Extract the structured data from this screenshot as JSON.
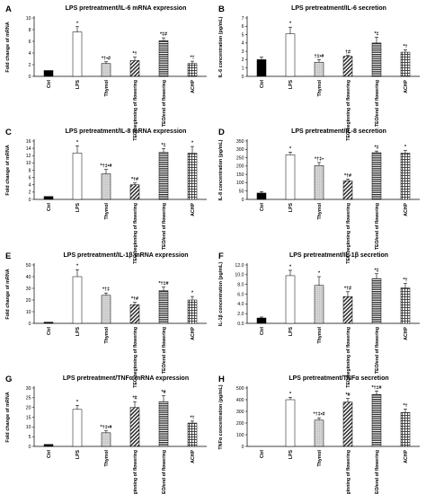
{
  "chart_data": [
    {
      "type": "bar",
      "letter": "A",
      "title": "LPS pretreatment/IL-6 mRNA expression",
      "ylabel": "Fold change of mRNA",
      "ylim": [
        0,
        10
      ],
      "yticks": [
        0,
        2,
        4,
        6,
        8,
        10
      ],
      "categories": [
        "Ctrl",
        "LPS",
        "Thymol",
        "TEO/beginning of flowering",
        "TEO/end of flowering",
        "ACHP"
      ],
      "values": [
        1.0,
        7.6,
        2.2,
        2.7,
        6.1,
        2.2
      ],
      "errors": [
        0.0,
        0.9,
        0.3,
        0.6,
        0.5,
        0.4
      ],
      "annotations": [
        "",
        "*",
        "*†•#",
        "*†",
        "*‡#",
        "*†"
      ]
    },
    {
      "type": "bar",
      "letter": "B",
      "title": "LPS pretreatment/IL-6 secretion",
      "ylabel": "IL-6 concentration (pg/mL)",
      "ylim": [
        0,
        7
      ],
      "yticks": [
        0,
        1,
        2,
        3,
        4,
        5,
        6,
        7
      ],
      "categories": [
        "Ctrl",
        "LPS",
        "Thymol",
        "TEO/beginning of flowering",
        "TEO/end of flowering",
        "ACHP"
      ],
      "values": [
        2.0,
        5.1,
        1.7,
        2.4,
        4.0,
        2.9
      ],
      "errors": [
        0.3,
        0.8,
        0.3,
        0.1,
        0.7,
        0.3
      ],
      "annotations": [
        "",
        "*",
        "†‡•#",
        "†#",
        "*‡",
        "*†"
      ]
    },
    {
      "type": "bar",
      "letter": "C",
      "title": "LPS pretreatment/IL-8 mRNA expression",
      "ylabel": "Fold change of mRNA",
      "ylim": [
        0,
        16
      ],
      "yticks": [
        0,
        2,
        4,
        6,
        8,
        10,
        12,
        14,
        16
      ],
      "categories": [
        "Ctrl",
        "LPS",
        "Thymol",
        "TEO/beginning of flowering",
        "TEO/end of flowering",
        "ACHP"
      ],
      "values": [
        0.8,
        12.7,
        7.0,
        4.0,
        12.9,
        12.7
      ],
      "errors": [
        0.0,
        2.0,
        1.2,
        0.5,
        1.0,
        1.8
      ],
      "annotations": [
        "",
        "*",
        "*†‡•#",
        "*†#",
        "*‡",
        "*"
      ]
    },
    {
      "type": "bar",
      "letter": "D",
      "title": "LPS pretreatment/IL-8 secretion",
      "ylabel": "IL-8 concentration (pg/mL)",
      "ylim": [
        0,
        350
      ],
      "yticks": [
        0,
        50,
        100,
        150,
        200,
        250,
        300,
        350
      ],
      "categories": [
        "Ctrl",
        "LPS",
        "Thymol",
        "TEO/beginning of flowering",
        "TEO/end of flowering",
        "ACHP"
      ],
      "values": [
        38,
        268,
        203,
        112,
        280,
        278
      ],
      "errors": [
        8,
        15,
        18,
        10,
        10,
        15
      ],
      "annotations": [
        "",
        "*",
        "*†‡•",
        "*†#",
        "*‡",
        "*"
      ]
    },
    {
      "type": "bar",
      "letter": "E",
      "title": "LPS pretreatment/IL-1β mRNA expression",
      "ylabel": "Fold change of mRNA",
      "ylim": [
        0,
        50
      ],
      "yticks": [
        0,
        10,
        20,
        30,
        40,
        50
      ],
      "categories": [
        "Ctrl",
        "LPS",
        "Thymol",
        "TEO/beginning of flowering",
        "TEO/end of flowering",
        "ACHP"
      ],
      "values": [
        1,
        40,
        24,
        16,
        28,
        20
      ],
      "errors": [
        0,
        6,
        2,
        2,
        3,
        3
      ],
      "annotations": [
        "",
        "*",
        "*†‡",
        "*†#",
        "*†‡#",
        "*"
      ]
    },
    {
      "type": "bar",
      "letter": "F",
      "title": "LPS pretreatment/IL-1β secretion",
      "ylabel": "IL-1β concentration (pg/mL)",
      "ylim": [
        0,
        12
      ],
      "yticks": [
        0,
        2,
        4,
        6,
        8,
        10,
        12
      ],
      "yticklabels": [
        "0.0",
        "2.0",
        "4.0",
        "6.0",
        "8.0",
        "10.0",
        "12.0"
      ],
      "categories": [
        "Ctrl",
        "LPS",
        "Thymol",
        "TEO/beginning of flowering",
        "TEO/end of flowering",
        "ACHP"
      ],
      "values": [
        1.1,
        9.8,
        7.8,
        5.5,
        9.2,
        7.3
      ],
      "errors": [
        0.2,
        1.1,
        1.8,
        1.0,
        1.0,
        0.9
      ],
      "annotations": [
        "",
        "*",
        "*",
        "*†#",
        "*‡",
        "*†"
      ]
    },
    {
      "type": "bar",
      "letter": "G",
      "title": "LPS pretreatment/TNFα mRNA expression",
      "ylabel": "Fold change of mRNA",
      "ylim": [
        0,
        30
      ],
      "yticks": [
        0,
        5,
        10,
        15,
        20,
        25,
        30
      ],
      "categories": [
        "Ctrl",
        "LPS",
        "Thymol",
        "TEO/beginning of flowering",
        "TEO/end of flowering",
        "ACHP"
      ],
      "values": [
        1,
        19,
        7,
        20,
        23,
        12
      ],
      "errors": [
        0,
        2,
        1,
        3,
        3,
        1
      ],
      "annotations": [
        "",
        "*",
        "*†‡•#",
        "*#",
        "*#",
        "*†"
      ]
    },
    {
      "type": "bar",
      "letter": "H",
      "title": "LPS pretreatment/TNFα secretion",
      "ylabel": "TNFα concentration (pg/mL)",
      "ylim": [
        0,
        500
      ],
      "yticks": [
        0,
        100,
        200,
        300,
        400,
        500
      ],
      "categories": [
        "Ctrl",
        "LPS",
        "Thymol",
        "TEO/beginning of flowering",
        "TEO/end of flowering",
        "ACHP"
      ],
      "values": [
        0,
        400,
        225,
        380,
        445,
        290
      ],
      "errors": [
        0,
        20,
        20,
        30,
        30,
        30
      ],
      "annotations": [
        "",
        "*",
        "*†‡•#",
        "*#",
        "*†‡#",
        "*†"
      ]
    }
  ],
  "colors": {
    "ctrl": "#000000",
    "lps": "#ffffff",
    "thymol": "#c8c8c8",
    "teo_begin": "#3a3a3a",
    "teo_end": "#2a2a2a",
    "achp": "#3a3a3a",
    "axis": "#000000"
  }
}
